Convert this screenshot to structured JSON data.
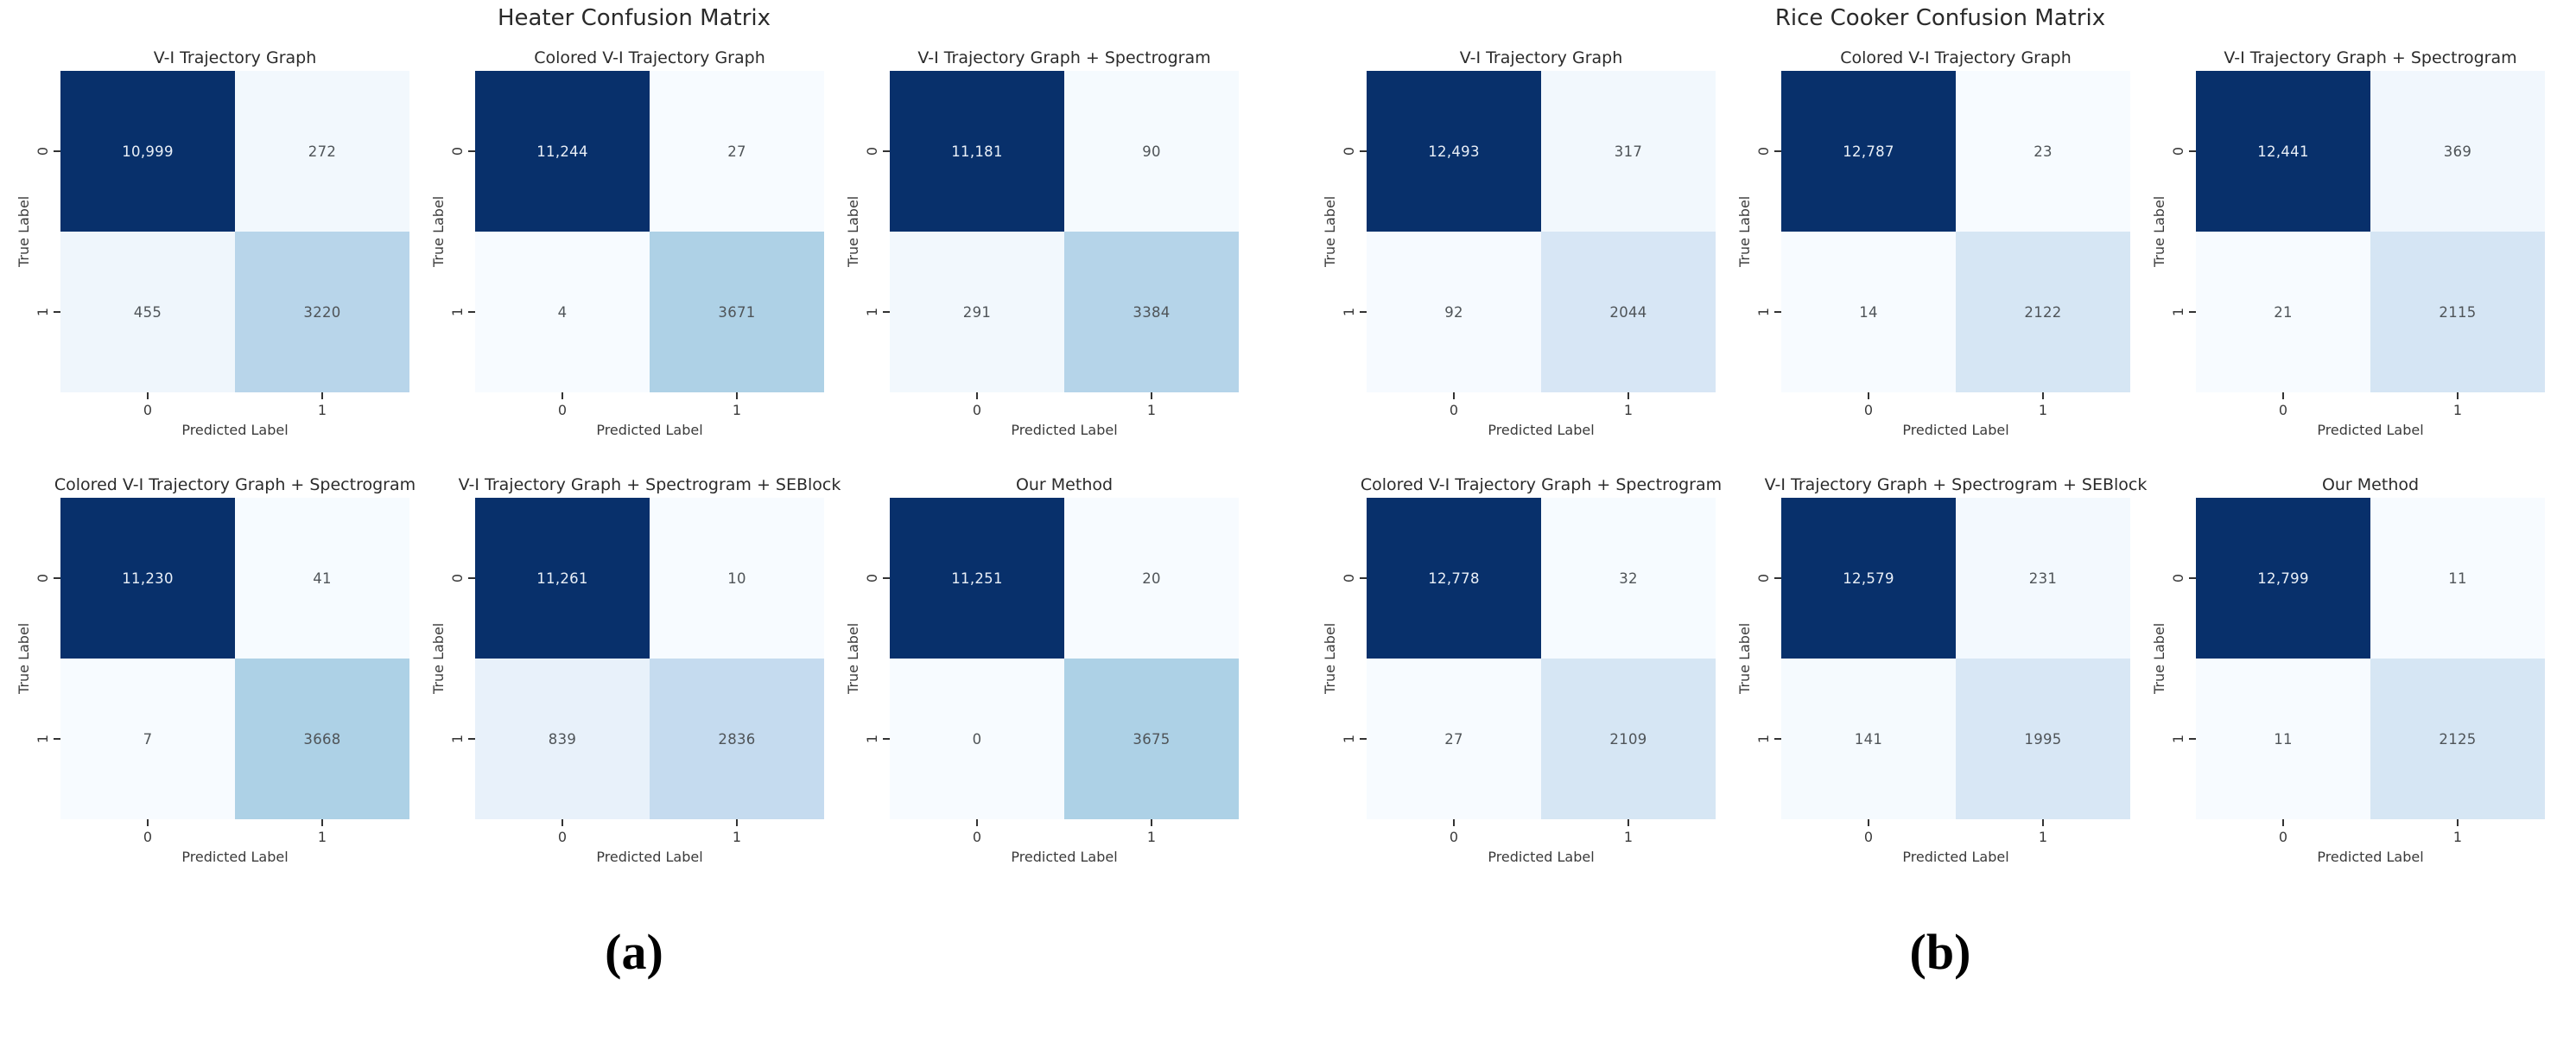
{
  "colors": {
    "background": "#ffffff",
    "colormap_name": "Blues",
    "colormap_anchors": [
      [
        0.0,
        [
          247,
          251,
          255
        ]
      ],
      [
        0.125,
        [
          222,
          235,
          247
        ]
      ],
      [
        0.25,
        [
          198,
          219,
          239
        ]
      ],
      [
        0.375,
        [
          158,
          202,
          225
        ]
      ],
      [
        0.5,
        [
          107,
          174,
          214
        ]
      ],
      [
        0.625,
        [
          66,
          146,
          198
        ]
      ],
      [
        0.75,
        [
          33,
          113,
          181
        ]
      ],
      [
        0.875,
        [
          8,
          81,
          156
        ]
      ],
      [
        1.0,
        [
          8,
          48,
          107
        ]
      ]
    ],
    "dark_cell": "#08306b",
    "light_cell": "#f7fbff",
    "cell_text_light": "#e9eff7",
    "cell_text_dark": "#4f5458",
    "axis_text": "#3a3a3a",
    "title_text": "#2a2a2a",
    "caption_text": "#000000"
  },
  "chart_data": [
    {
      "type": "heatmap",
      "title": "Heater Confusion Matrix",
      "caption": "(a)",
      "layout": "2x3 grid of 2x2 confusion matrices",
      "colormap": "Blues",
      "xlabel": "Predicted Label",
      "ylabel": "True Label",
      "x_tick_labels": [
        "0",
        "1"
      ],
      "y_tick_labels": [
        "0",
        "1"
      ],
      "matrices": [
        {
          "subtitle": "V-I Trajectory Graph",
          "values": [
            [
              10999,
              272
            ],
            [
              455,
              3220
            ]
          ]
        },
        {
          "subtitle": "Colored V-I Trajectory Graph",
          "values": [
            [
              11244,
              27
            ],
            [
              4,
              3671
            ]
          ]
        },
        {
          "subtitle": "V-I Trajectory Graph + Spectrogram",
          "values": [
            [
              11181,
              90
            ],
            [
              291,
              3384
            ]
          ]
        },
        {
          "subtitle": "Colored V-I Trajectory Graph + Spectrogram",
          "values": [
            [
              11230,
              41
            ],
            [
              7,
              3668
            ]
          ]
        },
        {
          "subtitle": "V-I Trajectory Graph + Spectrogram + SEBlock",
          "values": [
            [
              11261,
              10
            ],
            [
              839,
              2836
            ]
          ]
        },
        {
          "subtitle": "Our Method",
          "values": [
            [
              11251,
              20
            ],
            [
              0,
              3675
            ]
          ]
        }
      ]
    },
    {
      "type": "heatmap",
      "title": "Rice Cooker Confusion Matrix",
      "caption": "(b)",
      "layout": "2x3 grid of 2x2 confusion matrices",
      "colormap": "Blues",
      "xlabel": "Predicted Label",
      "ylabel": "True Label",
      "x_tick_labels": [
        "0",
        "1"
      ],
      "y_tick_labels": [
        "0",
        "1"
      ],
      "matrices": [
        {
          "subtitle": "V-I Trajectory Graph",
          "values": [
            [
              12493,
              317
            ],
            [
              92,
              2044
            ]
          ]
        },
        {
          "subtitle": "Colored V-I Trajectory Graph",
          "values": [
            [
              12787,
              23
            ],
            [
              14,
              2122
            ]
          ]
        },
        {
          "subtitle": "V-I Trajectory Graph + Spectrogram",
          "values": [
            [
              12441,
              369
            ],
            [
              21,
              2115
            ]
          ]
        },
        {
          "subtitle": "Colored V-I Trajectory Graph + Spectrogram",
          "values": [
            [
              12778,
              32
            ],
            [
              27,
              2109
            ]
          ]
        },
        {
          "subtitle": "V-I Trajectory Graph + Spectrogram + SEBlock",
          "values": [
            [
              12579,
              231
            ],
            [
              141,
              1995
            ]
          ]
        },
        {
          "subtitle": "Our Method",
          "values": [
            [
              12799,
              11
            ],
            [
              11,
              2125
            ]
          ]
        }
      ]
    }
  ]
}
